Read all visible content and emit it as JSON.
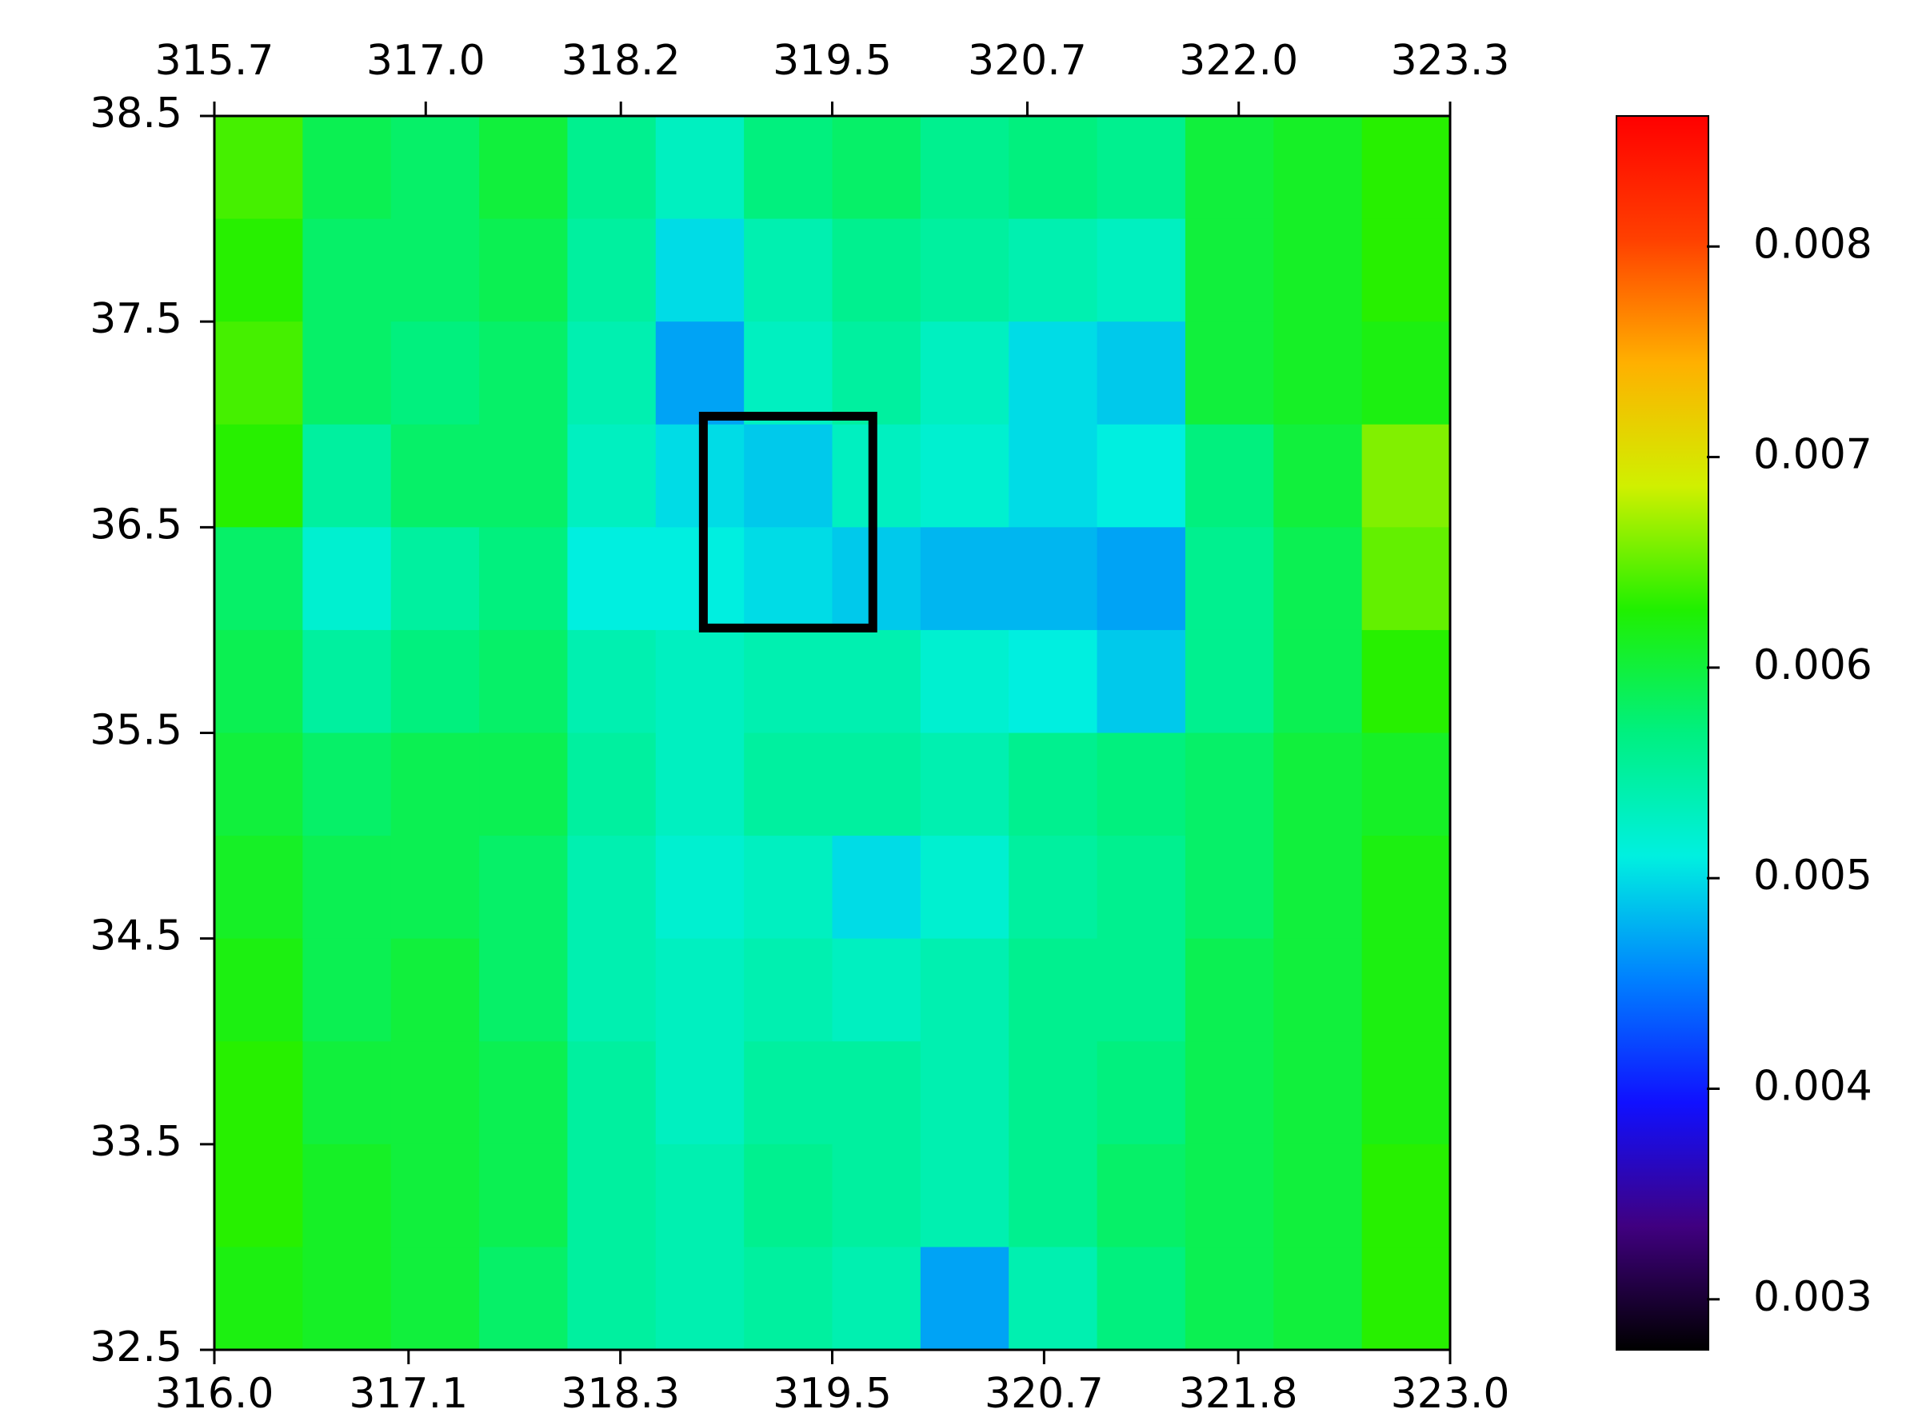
{
  "chart_data": {
    "type": "heatmap",
    "x": [
      316.25,
      316.75,
      317.25,
      317.75,
      318.25,
      318.75,
      319.25,
      319.75,
      320.25,
      320.75,
      321.25,
      321.75,
      322.25,
      322.75
    ],
    "y": [
      38.25,
      37.75,
      37.25,
      36.75,
      36.25,
      35.75,
      35.25,
      34.75,
      34.25,
      33.75,
      33.25,
      32.75
    ],
    "z": [
      [
        0.0064,
        0.0059,
        0.0058,
        0.006,
        0.0056,
        0.0053,
        0.0057,
        0.0058,
        0.0056,
        0.0057,
        0.0056,
        0.006,
        0.0061,
        0.0063
      ],
      [
        0.0063,
        0.0058,
        0.0058,
        0.0059,
        0.0055,
        0.005,
        0.0054,
        0.0056,
        0.0055,
        0.0054,
        0.0053,
        0.006,
        0.0061,
        0.0063
      ],
      [
        0.0064,
        0.0058,
        0.0057,
        0.0058,
        0.0054,
        0.0047,
        0.0053,
        0.0055,
        0.0053,
        0.005,
        0.0049,
        0.006,
        0.0061,
        0.0062
      ],
      [
        0.0063,
        0.0055,
        0.0058,
        0.0058,
        0.0053,
        0.005,
        0.0049,
        0.0053,
        0.0052,
        0.005,
        0.0051,
        0.0057,
        0.006,
        0.0066
      ],
      [
        0.0058,
        0.0052,
        0.0055,
        0.0057,
        0.0051,
        0.0051,
        0.005,
        0.0049,
        0.0048,
        0.0048,
        0.0047,
        0.0056,
        0.0059,
        0.0065
      ],
      [
        0.0059,
        0.0055,
        0.0057,
        0.0058,
        0.0054,
        0.0053,
        0.0054,
        0.0054,
        0.0052,
        0.0051,
        0.0049,
        0.0056,
        0.0059,
        0.0063
      ],
      [
        0.006,
        0.0058,
        0.0059,
        0.0059,
        0.0055,
        0.0053,
        0.0055,
        0.0055,
        0.0054,
        0.0056,
        0.0057,
        0.0058,
        0.006,
        0.0061
      ],
      [
        0.0061,
        0.0059,
        0.0059,
        0.0058,
        0.0054,
        0.0052,
        0.0053,
        0.005,
        0.0052,
        0.0055,
        0.0056,
        0.0058,
        0.006,
        0.0062
      ],
      [
        0.0062,
        0.0059,
        0.006,
        0.0058,
        0.0054,
        0.0053,
        0.0054,
        0.0053,
        0.0054,
        0.0056,
        0.0056,
        0.0059,
        0.006,
        0.0062
      ],
      [
        0.0063,
        0.006,
        0.006,
        0.0059,
        0.0055,
        0.0053,
        0.0055,
        0.0055,
        0.0054,
        0.0056,
        0.0057,
        0.0059,
        0.006,
        0.0062
      ],
      [
        0.0063,
        0.0061,
        0.006,
        0.0059,
        0.0055,
        0.0054,
        0.0056,
        0.0055,
        0.0054,
        0.0056,
        0.0058,
        0.0059,
        0.006,
        0.0063
      ],
      [
        0.0062,
        0.0061,
        0.006,
        0.0058,
        0.0055,
        0.0054,
        0.0055,
        0.0054,
        0.0047,
        0.0054,
        0.0057,
        0.0059,
        0.006,
        0.0063
      ]
    ],
    "xlim": [
      316.0,
      323.0
    ],
    "xticks": [
      {
        "value": 316.0,
        "label": "316.0"
      },
      317.1,
      318.3,
      319.5,
      320.7,
      321.8,
      {
        "value": 323.0,
        "label": "323.0"
      }
    ],
    "x2lim": [
      315.7,
      323.3
    ],
    "x2ticks": [
      315.7,
      {
        "value": 317.0,
        "label": "317.0"
      },
      318.2,
      319.5,
      320.7,
      {
        "value": 322.0,
        "label": "322.0"
      },
      323.3
    ],
    "ylim": [
      32.5,
      38.5
    ],
    "yticks": [
      32.5,
      33.5,
      34.5,
      35.5,
      36.5,
      37.5,
      38.5
    ],
    "clim": [
      0.00276,
      0.00862
    ],
    "cticks": [
      0.003,
      0.004,
      0.005,
      0.006,
      0.007,
      0.008
    ],
    "colormap": [
      "#000000",
      "#400080",
      "#1010ff",
      "#0080ff",
      "#00f0e0",
      "#00f080",
      "#20f000",
      "#d0f000",
      "#ffb000",
      "#ff4000",
      "#ff0000"
    ],
    "box": {
      "x": [
        318.77,
        319.73
      ],
      "y": [
        36.01,
        37.04
      ]
    }
  }
}
